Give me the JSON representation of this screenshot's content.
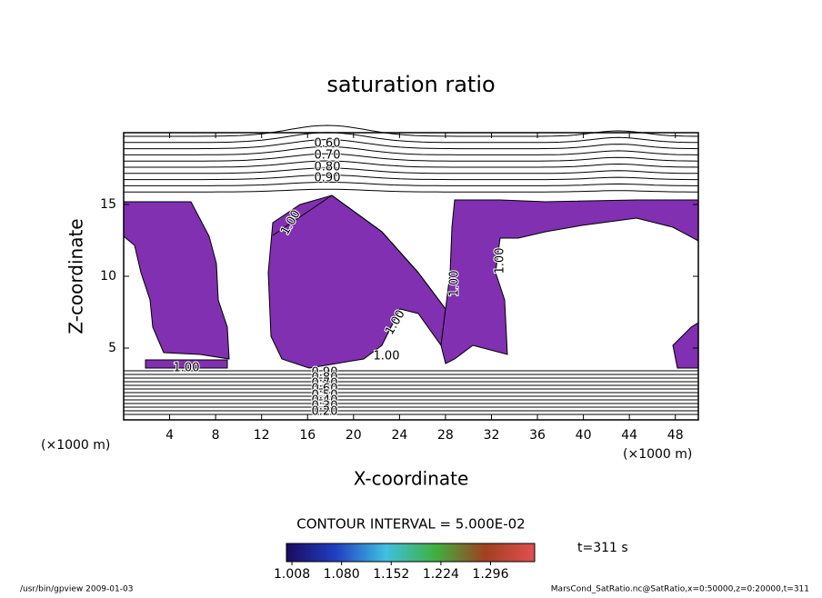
{
  "chart_data": {
    "type": "contour",
    "title": "saturation ratio",
    "xlabel": "X-coordinate",
    "ylabel": "Z-coordinate",
    "x_unit": "(×1000 m)",
    "y_unit": "(×1000 m)",
    "xlim": [
      0,
      50
    ],
    "ylim": [
      0,
      20
    ],
    "xticks": [
      4,
      8,
      12,
      16,
      20,
      24,
      28,
      32,
      36,
      40,
      44,
      48
    ],
    "yticks": [
      5,
      10,
      15
    ],
    "fill_color": "#8030b0",
    "contour_labels": [
      "0.60",
      "0.70",
      "0.80",
      "0.90",
      "1.00",
      "1.00",
      "1.00",
      "1.00",
      "1.00",
      "1.00",
      "0.90",
      "0.80",
      "0.70",
      "0.60",
      "0.50",
      "0.40",
      "0.30",
      "0.20"
    ],
    "contour_interval": "CONTOUR INTERVAL = 5.000E-02",
    "colorbar": {
      "lim": [
        1.0,
        1.36
      ],
      "ticks": [
        {
          "value": 1.008,
          "label": "1.008"
        },
        {
          "value": 1.08,
          "label": "1.080"
        },
        {
          "value": 1.152,
          "label": "1.152"
        },
        {
          "value": 1.224,
          "label": "1.224"
        },
        {
          "value": 1.296,
          "label": "1.296"
        }
      ]
    },
    "time": "t=311 s",
    "footer_left": "/usr/bin/gpview  2009-01-03",
    "footer_right": "MarsCond_SatRatio.nc@SatRatio,x=0:50000,z=0:20000,t=311"
  }
}
